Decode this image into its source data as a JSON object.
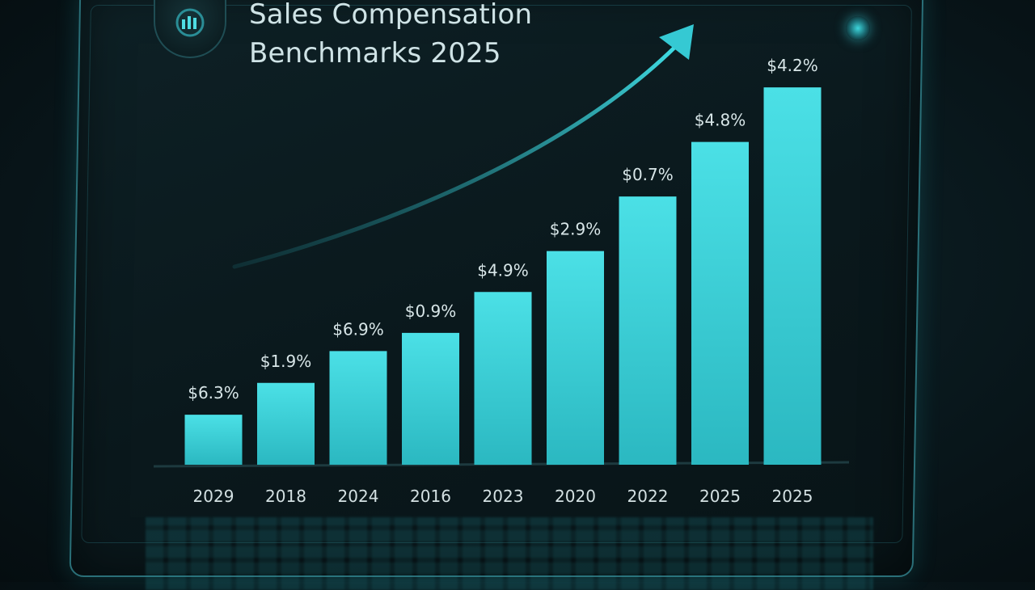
{
  "title_lines": [
    "Sales Compensation",
    "Benchmarks 2025"
  ],
  "colors": {
    "bar": "#3fd5dc",
    "trend": "#35c9d3",
    "background": "#0a181c"
  },
  "icons": {
    "logo": "bar-chart-icon",
    "status": "status-dot-icon"
  },
  "chart_data": {
    "type": "bar",
    "title": "Sales Compensation Benchmarks 2025",
    "categories": [
      "2029",
      "2018",
      "2024",
      "2016",
      "2023",
      "2020",
      "2022",
      "2025",
      "2025"
    ],
    "values": [
      11,
      18,
      25,
      29,
      38,
      47,
      59,
      71,
      83
    ],
    "value_labels": [
      "$6.3%",
      "$1.9%",
      "$6.9%",
      "$0.9%",
      "$4.9%",
      "$2.9%",
      "$0.7%",
      "$4.8%",
      "$4.2%"
    ],
    "ylim": [
      0,
      88
    ],
    "grid": false,
    "trend_arrow": true
  }
}
